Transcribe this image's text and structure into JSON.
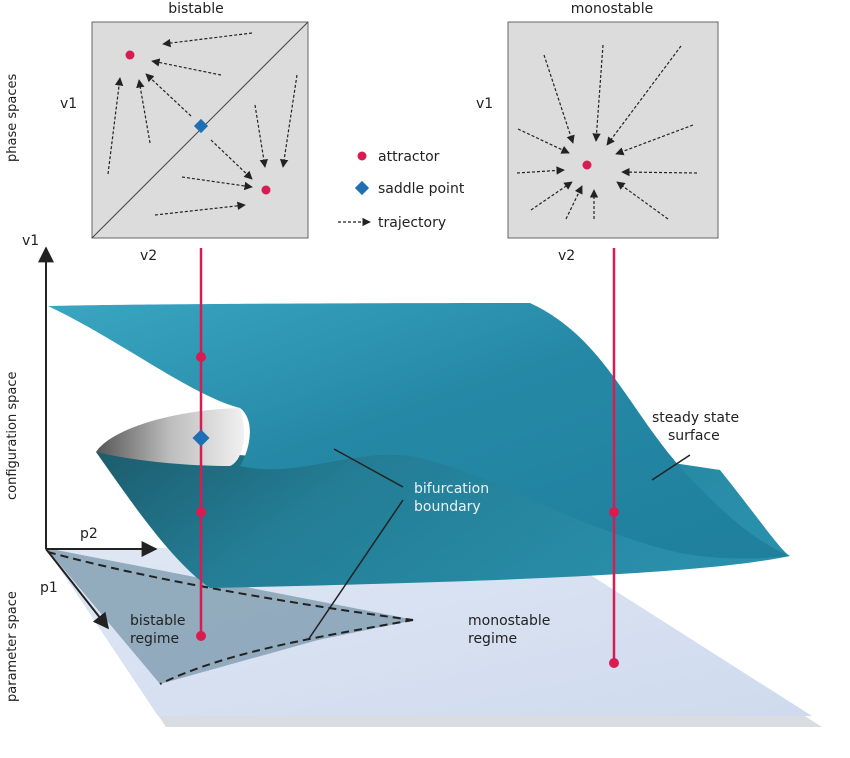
{
  "phase_panels": {
    "bistable": {
      "title": "bistable",
      "y_axis": "v1",
      "x_axis": "v2"
    },
    "monostable": {
      "title": "monostable",
      "y_axis": "v1",
      "x_axis": "v2"
    }
  },
  "legend": {
    "attractor": "attractor",
    "saddle_point": "saddle point",
    "trajectory": "trajectory"
  },
  "side_labels": {
    "phase": "phase spaces",
    "configuration": "configuration space",
    "parameter": "parameter space"
  },
  "axes": {
    "v1": "v1",
    "p1": "p1",
    "p2": "p2"
  },
  "annotations": {
    "steady_line1": "steady state",
    "steady_line2": "surface",
    "bif_line1": "bifurcation",
    "bif_line2": "boundary",
    "bistable_line1": "bistable",
    "bistable_line2": "regime",
    "monostable_line1": "monostable",
    "monostable_line2": "regime"
  },
  "colors": {
    "attractor": "#d81b50",
    "saddle": "#1f6fb5",
    "surface": "#2a93b0",
    "plane": "#d5dff0",
    "bistable_region": "#8aa4b7"
  }
}
